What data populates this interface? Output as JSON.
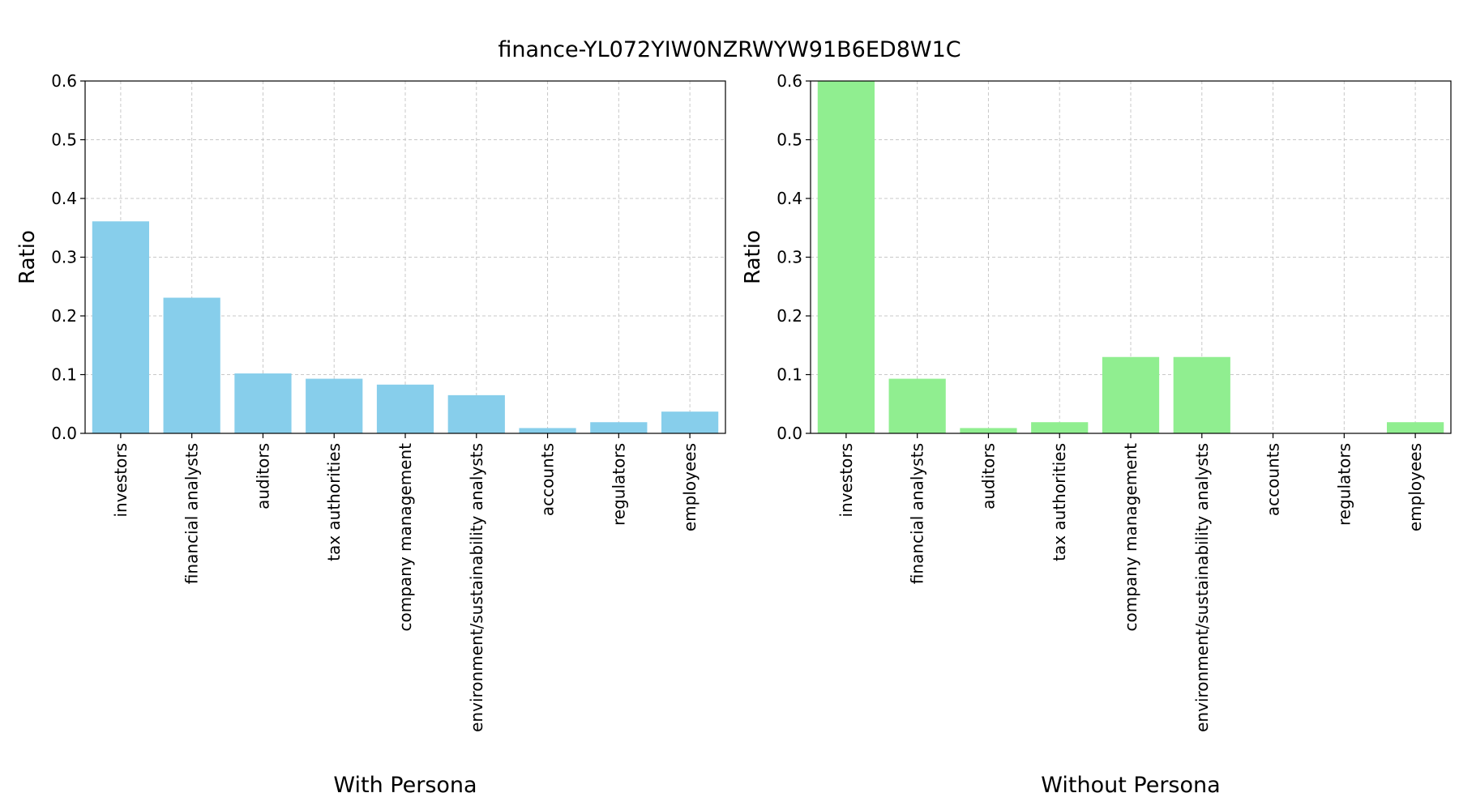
{
  "figure": {
    "title": "finance-YL072YIW0NZRWYW91B6ED8W1C"
  },
  "chart_data": [
    {
      "type": "bar",
      "xlabel": "With Persona",
      "ylabel": "Ratio",
      "ylim": [
        0,
        0.6
      ],
      "yticks": [
        "0.0",
        "0.1",
        "0.2",
        "0.3",
        "0.4",
        "0.5",
        "0.6"
      ],
      "grid": true,
      "categories": [
        "investors",
        "financial analysts",
        "auditors",
        "tax authorities",
        "company management",
        "environment/sustainability analysts",
        "accounts",
        "regulators",
        "employees"
      ],
      "values": [
        0.361,
        0.231,
        0.102,
        0.093,
        0.083,
        0.065,
        0.009,
        0.019,
        0.037
      ],
      "color": "#87ceeb"
    },
    {
      "type": "bar",
      "xlabel": "Without Persona",
      "ylabel": "Ratio",
      "ylim": [
        0,
        0.6
      ],
      "yticks": [
        "0.0",
        "0.1",
        "0.2",
        "0.3",
        "0.4",
        "0.5",
        "0.6"
      ],
      "grid": true,
      "categories": [
        "investors",
        "financial analysts",
        "auditors",
        "tax authorities",
        "company management",
        "environment/sustainability analysts",
        "accounts",
        "regulators",
        "employees"
      ],
      "values": [
        0.6,
        0.093,
        0.009,
        0.019,
        0.13,
        0.13,
        0.0,
        0.0,
        0.019
      ],
      "color": "#90ee90"
    }
  ]
}
